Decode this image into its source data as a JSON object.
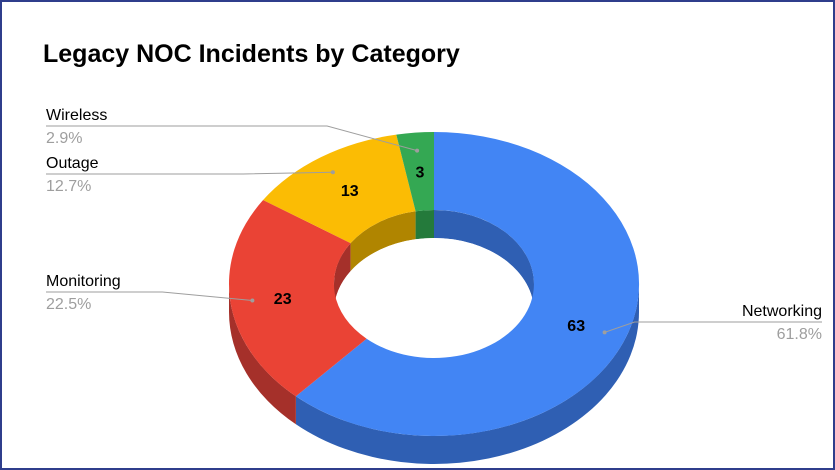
{
  "chart_data": {
    "type": "pie",
    "variant": "3d-donut",
    "title": "Legacy NOC Incidents by Category",
    "categories": [
      "Networking",
      "Monitoring",
      "Outage",
      "Wireless"
    ],
    "values": [
      63,
      23,
      13,
      3
    ],
    "percent_labels": [
      "61.8%",
      "22.5%",
      "12.7%",
      "2.9%"
    ],
    "colors": [
      "#4285f4",
      "#ea4335",
      "#fbbc04",
      "#34a853"
    ],
    "side_colors": [
      "#2f5fb3",
      "#a5302a",
      "#b08500",
      "#247a3b"
    ],
    "leader_color": "#9e9e9e",
    "legend": "labels-with-leader-lines"
  }
}
